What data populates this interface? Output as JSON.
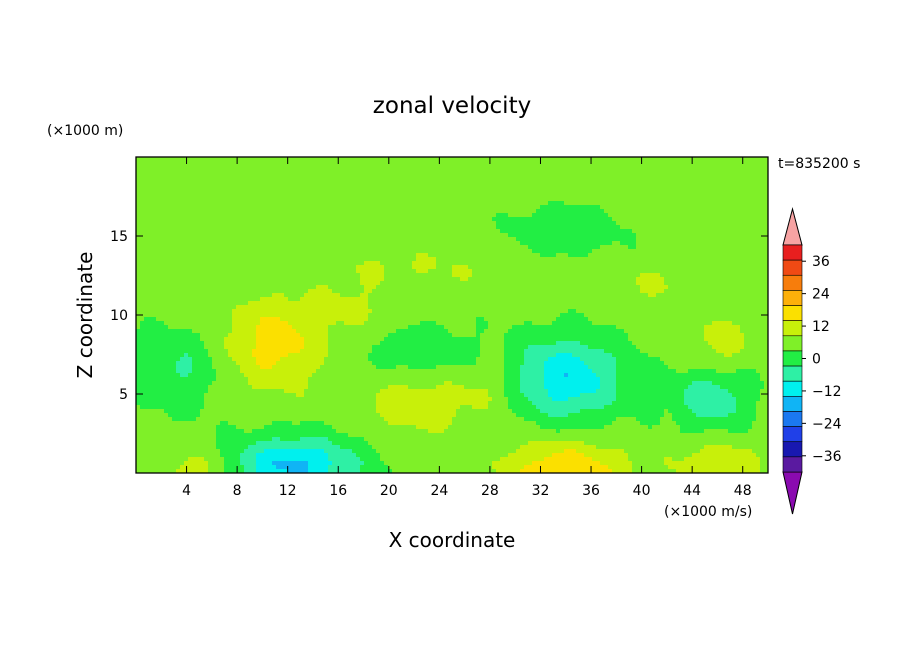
{
  "chart_data": {
    "type": "heatmap",
    "title": "zonal velocity",
    "xlabel": "X coordinate",
    "ylabel": "Z coordinate",
    "x_unit": "(×1000 m/s)",
    "y_unit": "(×1000 m)",
    "time_label": "t=835200 s",
    "xlim": [
      0,
      50
    ],
    "ylim": [
      0,
      20
    ],
    "x_ticks": [
      4,
      8,
      12,
      16,
      20,
      24,
      28,
      32,
      36,
      40,
      44,
      48
    ],
    "y_ticks": [
      5,
      10,
      15
    ],
    "colorbar": {
      "ticks": [
        36,
        24,
        12,
        0,
        -12,
        -24,
        -36
      ],
      "tick_labels": [
        "36",
        "24",
        "12",
        "0",
        "−12",
        "−24",
        "−36"
      ],
      "levels": [
        42,
        36,
        30,
        24,
        18,
        12,
        6,
        0,
        -6,
        -12,
        -18,
        -24,
        -30,
        -36,
        -42
      ],
      "colors": [
        "#e81f1f",
        "#f04a14",
        "#f77d0c",
        "#fdb00a",
        "#fbe000",
        "#c8f00a",
        "#7ff028",
        "#22ee44",
        "#2ef0a5",
        "#00f0ee",
        "#10b4f5",
        "#1b78f0",
        "#2040e8",
        "#1818b0",
        "#5a1aa0"
      ],
      "over_color": "#f7a3a3",
      "under_color": "#8a0ab0"
    },
    "field": {
      "background": 2,
      "blobs": [
        {
          "x": 11,
          "z": 8.2,
          "sx": 3.8,
          "sz": 2.8,
          "a": 13
        },
        {
          "x": 22,
          "z": 4.2,
          "sx": 4,
          "sz": 1.6,
          "a": 9
        },
        {
          "x": 28,
          "z": 5.5,
          "sx": 3,
          "sz": 2,
          "a": 5
        },
        {
          "x": 34,
          "z": 0.2,
          "sx": 5,
          "sz": 1.8,
          "a": 15
        },
        {
          "x": 5,
          "z": 0.2,
          "sx": 2.4,
          "sz": 1.2,
          "a": 9
        },
        {
          "x": 46,
          "z": 0.5,
          "sx": 3,
          "sz": 1.5,
          "a": 10
        },
        {
          "x": 12.5,
          "z": 0.5,
          "sx": 5,
          "sz": 1.8,
          "a": -21
        },
        {
          "x": 34,
          "z": 6,
          "sx": 4.5,
          "sz": 2.6,
          "a": -19
        },
        {
          "x": 45.5,
          "z": 4.8,
          "sx": 3,
          "sz": 2,
          "a": -13
        },
        {
          "x": 3,
          "z": 6.5,
          "sx": 3.5,
          "sz": 2.5,
          "a": -9
        },
        {
          "x": 23,
          "z": 7.8,
          "sx": 4,
          "sz": 1.6,
          "a": -6
        },
        {
          "x": 34,
          "z": 15.3,
          "sx": 4,
          "sz": 1.5,
          "a": -8
        },
        {
          "x": 22,
          "z": 13,
          "sx": 10,
          "sz": 1.3,
          "a": 4
        },
        {
          "x": 42,
          "z": 12,
          "sx": 8,
          "sz": 1.5,
          "a": 4
        },
        {
          "x": 8,
          "z": 15.5,
          "sx": 8,
          "sz": 1.5,
          "a": 3
        },
        {
          "x": 24,
          "z": 18,
          "sx": 10,
          "sz": 1,
          "a": 3
        },
        {
          "x": 46,
          "z": 8,
          "sx": 2.5,
          "sz": 2,
          "a": 7
        },
        {
          "x": 17,
          "z": 10.5,
          "sx": 3,
          "sz": 1.5,
          "a": 5
        }
      ]
    }
  }
}
